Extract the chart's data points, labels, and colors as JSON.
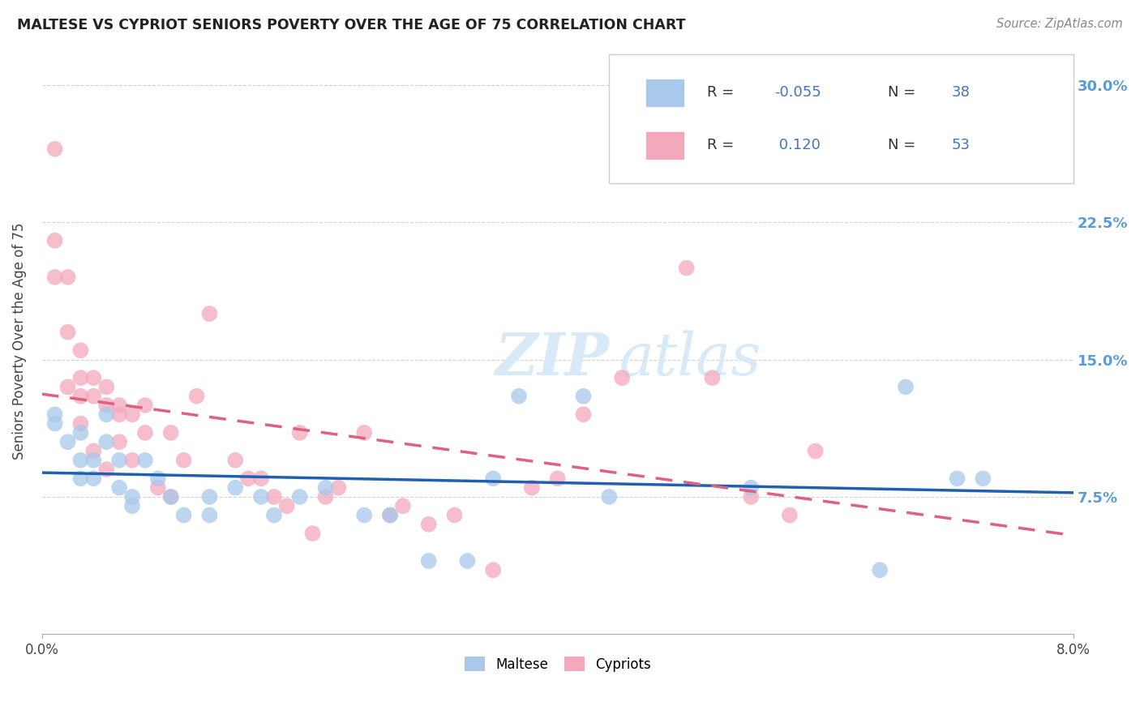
{
  "title": "MALTESE VS CYPRIOT SENIORS POVERTY OVER THE AGE OF 75 CORRELATION CHART",
  "source": "Source: ZipAtlas.com",
  "ylabel": "Seniors Poverty Over the Age of 75",
  "ytick_labels": [
    "7.5%",
    "15.0%",
    "22.5%",
    "30.0%"
  ],
  "ytick_values": [
    0.075,
    0.15,
    0.225,
    0.3
  ],
  "legend_maltese_r": "-0.055",
  "legend_maltese_n": "38",
  "legend_cypriot_r": "0.120",
  "legend_cypriot_n": "53",
  "maltese_color": "#A8C8EC",
  "cypriot_color": "#F4A8BC",
  "maltese_line_color": "#2060B0",
  "cypriot_line_color": "#E06080",
  "watermark_color": "#D8EAF8",
  "maltese_x": [
    0.001,
    0.001,
    0.002,
    0.003,
    0.003,
    0.003,
    0.004,
    0.004,
    0.005,
    0.005,
    0.006,
    0.006,
    0.007,
    0.007,
    0.008,
    0.009,
    0.01,
    0.011,
    0.013,
    0.013,
    0.015,
    0.017,
    0.018,
    0.02,
    0.022,
    0.025,
    0.027,
    0.03,
    0.033,
    0.035,
    0.037,
    0.042,
    0.044,
    0.055,
    0.065,
    0.067,
    0.071,
    0.073
  ],
  "maltese_y": [
    0.12,
    0.115,
    0.105,
    0.11,
    0.095,
    0.085,
    0.095,
    0.085,
    0.12,
    0.105,
    0.095,
    0.08,
    0.075,
    0.07,
    0.095,
    0.085,
    0.075,
    0.065,
    0.075,
    0.065,
    0.08,
    0.075,
    0.065,
    0.075,
    0.08,
    0.065,
    0.065,
    0.04,
    0.04,
    0.085,
    0.13,
    0.13,
    0.075,
    0.08,
    0.035,
    0.135,
    0.085,
    0.085
  ],
  "cypriot_x": [
    0.001,
    0.001,
    0.001,
    0.002,
    0.002,
    0.002,
    0.003,
    0.003,
    0.003,
    0.003,
    0.004,
    0.004,
    0.004,
    0.005,
    0.005,
    0.005,
    0.006,
    0.006,
    0.006,
    0.007,
    0.007,
    0.008,
    0.008,
    0.009,
    0.01,
    0.01,
    0.011,
    0.012,
    0.013,
    0.015,
    0.016,
    0.017,
    0.018,
    0.019,
    0.02,
    0.021,
    0.022,
    0.023,
    0.025,
    0.027,
    0.028,
    0.03,
    0.032,
    0.035,
    0.038,
    0.04,
    0.042,
    0.045,
    0.05,
    0.052,
    0.055,
    0.058,
    0.06
  ],
  "cypriot_y": [
    0.265,
    0.215,
    0.195,
    0.195,
    0.165,
    0.135,
    0.155,
    0.14,
    0.13,
    0.115,
    0.14,
    0.13,
    0.1,
    0.135,
    0.125,
    0.09,
    0.125,
    0.12,
    0.105,
    0.12,
    0.095,
    0.125,
    0.11,
    0.08,
    0.11,
    0.075,
    0.095,
    0.13,
    0.175,
    0.095,
    0.085,
    0.085,
    0.075,
    0.07,
    0.11,
    0.055,
    0.075,
    0.08,
    0.11,
    0.065,
    0.07,
    0.06,
    0.065,
    0.035,
    0.08,
    0.085,
    0.12,
    0.14,
    0.2,
    0.14,
    0.075,
    0.065,
    0.1
  ]
}
